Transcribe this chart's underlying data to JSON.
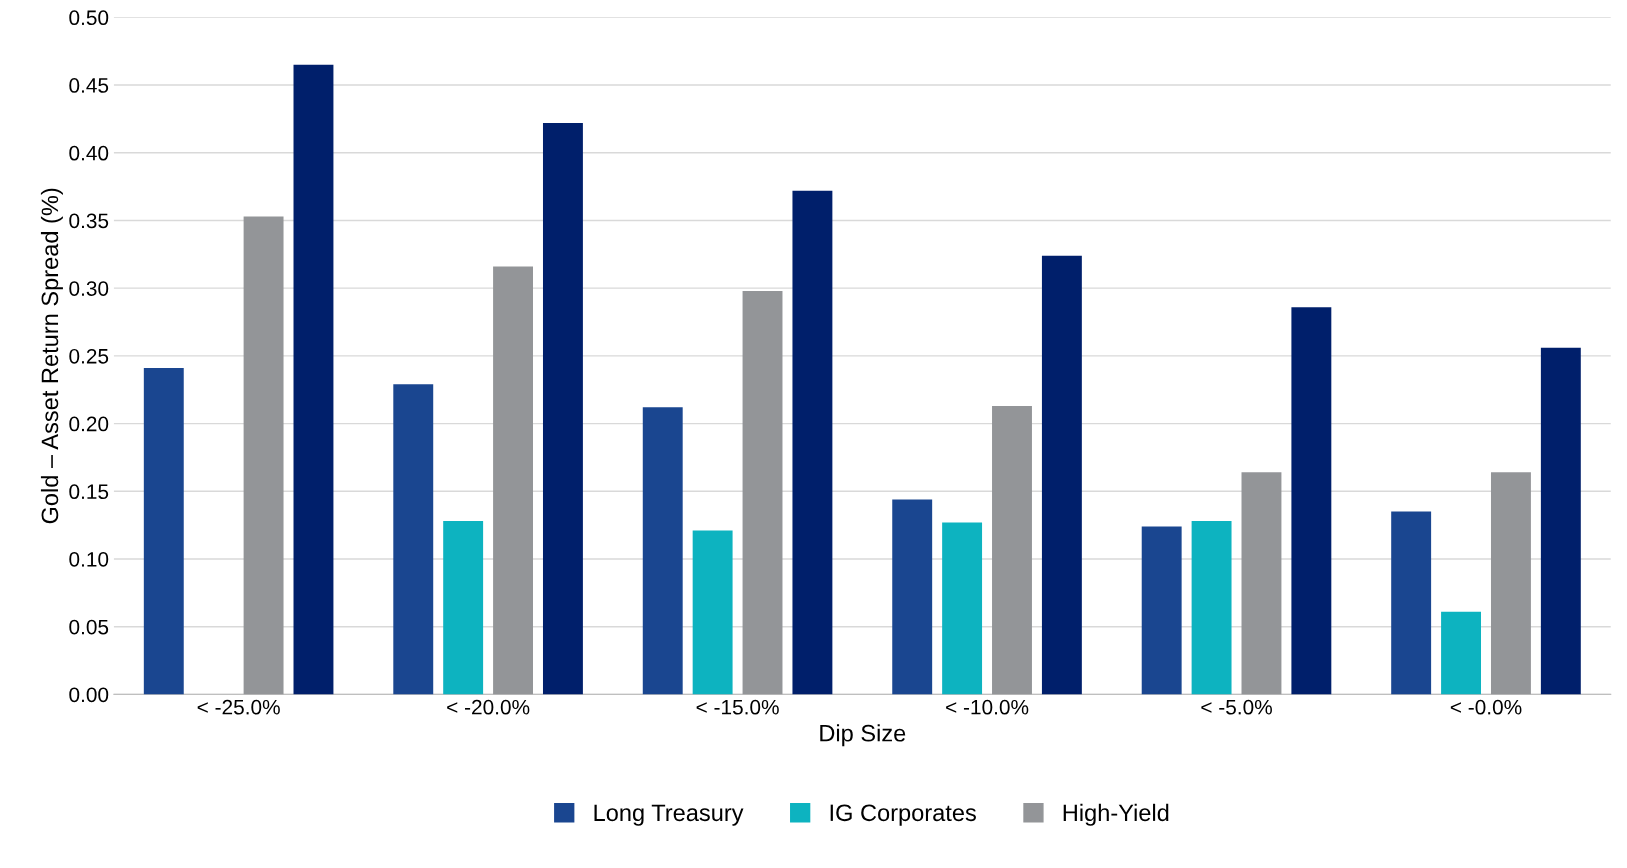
{
  "chart_data": {
    "type": "bar",
    "xlabel": "Dip Size",
    "ylabel": "Gold – Asset Return Spread (%)",
    "categories": [
      "< -25.0%",
      "< -20.0%",
      "< -15.0%",
      "< -10.0%",
      "< -5.0%",
      "< -0.0%"
    ],
    "series": [
      {
        "name": "Long Treasury",
        "color": "#1a4690",
        "values": [
          0.241,
          0.229,
          0.212,
          0.144,
          0.124,
          0.135
        ]
      },
      {
        "name": "IG Corporates",
        "color": "#0db3c0",
        "values": [
          null,
          0.128,
          0.121,
          0.127,
          0.128,
          0.061
        ]
      },
      {
        "name": "High-Yield",
        "color": "#939598",
        "values": [
          0.353,
          0.316,
          0.298,
          0.213,
          0.164,
          0.164
        ]
      },
      {
        "color": "#001f6b",
        "values": [
          0.465,
          0.422,
          0.372,
          0.324,
          0.286,
          0.256
        ]
      }
    ],
    "ylim": [
      0,
      0.5
    ],
    "yticks": [
      {
        "value": 0,
        "label": "0.00"
      },
      {
        "value": 0.05,
        "label": "0.05"
      },
      {
        "value": 0.1,
        "label": "0.10"
      },
      {
        "value": 0.15,
        "label": "0.15"
      },
      {
        "value": 0.2,
        "label": "0.20"
      },
      {
        "value": 0.25,
        "label": "0.25"
      },
      {
        "value": 0.3,
        "label": "0.30"
      },
      {
        "value": 0.35,
        "label": "0.35"
      },
      {
        "value": 0.4,
        "label": "0.40"
      },
      {
        "value": 0.45,
        "label": "0.45"
      },
      {
        "value": 0.5,
        "label": "0.50"
      }
    ],
    "grid": "y",
    "legend": "bottom"
  }
}
